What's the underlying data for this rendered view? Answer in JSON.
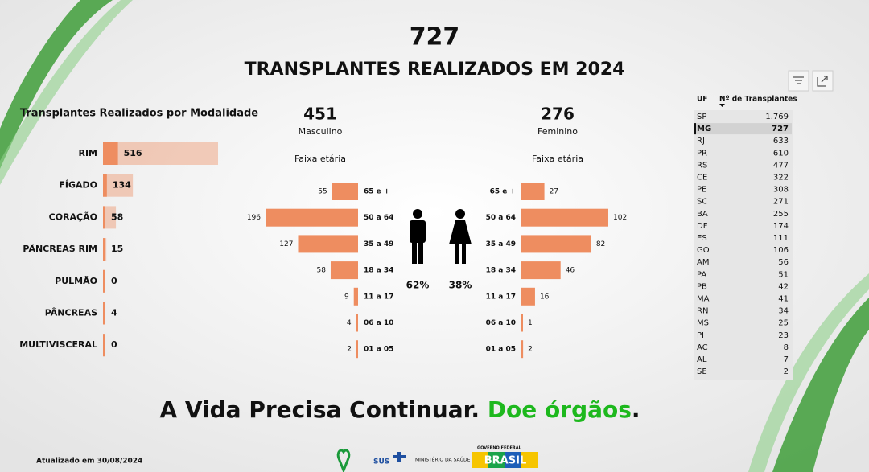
{
  "header": {
    "total": 727,
    "title": "TRANSPLANTES REALIZADOS EM 2024"
  },
  "chart_data": [
    {
      "type": "hbar",
      "title": "Transplantes Realizados por Modalidade",
      "categories": [
        "RIM",
        "FÍGADO",
        "CORAÇÃO",
        "PÂNCREAS RIM",
        "PULMÃO",
        "PÂNCREAS",
        "MULTIVISCERAL"
      ],
      "values": [
        516,
        134,
        58,
        15,
        0,
        4,
        0
      ],
      "color": "#ee8d60"
    },
    {
      "type": "pyramid",
      "side": "left",
      "total": 451,
      "label": "Masculino",
      "subtitle": "Faixa etária",
      "categories": [
        "65 e +",
        "50 a 64",
        "35 a 49",
        "18 a 34",
        "11 a 17",
        "06 a 10",
        "01 a 05"
      ],
      "values": [
        55,
        196,
        127,
        58,
        9,
        4,
        2
      ],
      "share": 62,
      "share_label": "62%",
      "color": "#ee8d60"
    },
    {
      "type": "pyramid",
      "side": "right",
      "total": 276,
      "label": "Feminino",
      "subtitle": "Faixa etária",
      "categories": [
        "65 e +",
        "50 a 64",
        "35 a 49",
        "18 a 34",
        "11 a 17",
        "06 a 10",
        "01 a 05"
      ],
      "values": [
        27,
        102,
        82,
        46,
        16,
        1,
        2
      ],
      "share": 38,
      "share_label": "38%",
      "color": "#ee8d60"
    }
  ],
  "table": {
    "columns": [
      "UF",
      "Nº de Transplantes"
    ],
    "rows": [
      [
        "SP",
        "1.769"
      ],
      [
        "MG",
        "727"
      ],
      [
        "RJ",
        "633"
      ],
      [
        "PR",
        "610"
      ],
      [
        "RS",
        "477"
      ],
      [
        "CE",
        "322"
      ],
      [
        "PE",
        "308"
      ],
      [
        "SC",
        "271"
      ],
      [
        "BA",
        "255"
      ],
      [
        "DF",
        "174"
      ],
      [
        "ES",
        "111"
      ],
      [
        "GO",
        "106"
      ],
      [
        "AM",
        "56"
      ],
      [
        "PA",
        "51"
      ],
      [
        "PB",
        "42"
      ],
      [
        "MA",
        "41"
      ],
      [
        "RN",
        "34"
      ],
      [
        "MS",
        "25"
      ],
      [
        "PI",
        "23"
      ],
      [
        "AC",
        "8"
      ],
      [
        "AL",
        "7"
      ],
      [
        "SE",
        "2"
      ]
    ],
    "selected": "MG"
  },
  "slogan": {
    "part1": "A Vida Precisa Continuar.",
    "part2": "Doe órgãos",
    "part3": "."
  },
  "updated": "Atualizado em 30/08/2024",
  "logos": {
    "sus": "SUS",
    "ministry": "MINISTÉRIO DA SAÚDE",
    "government": "GOVERNO FEDERAL",
    "brasil": "BRASIL"
  }
}
